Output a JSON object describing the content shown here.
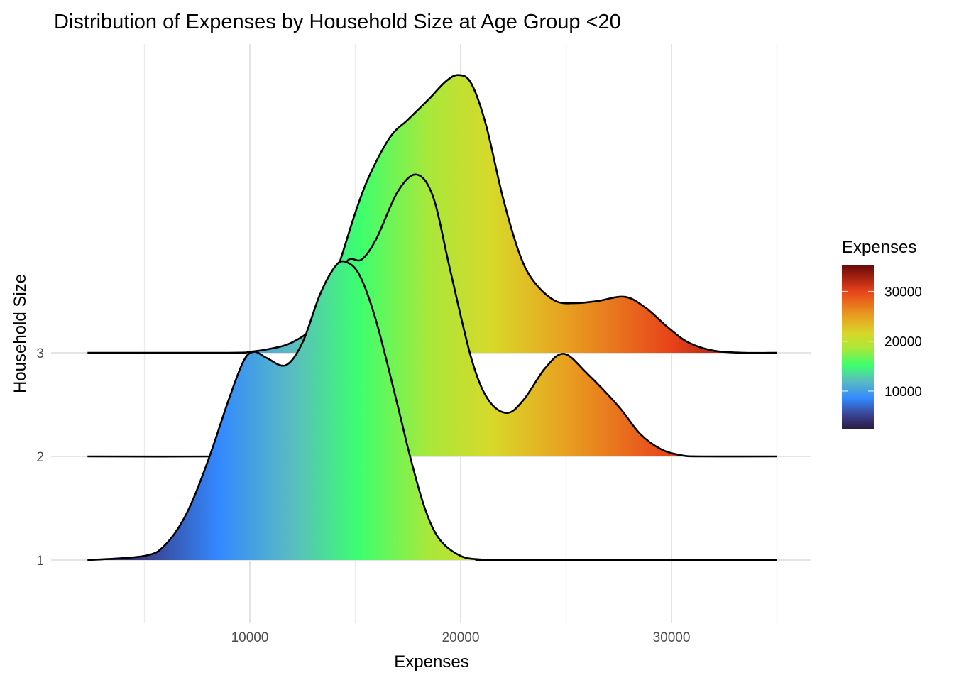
{
  "chart_data": {
    "type": "ridgeline",
    "title": "Distribution of Expenses by Household Size at Age Group <20",
    "xlabel": "Expenses",
    "ylabel": "Household Size",
    "xlim": [
      2300,
      35000
    ],
    "x_ticks": [
      10000,
      20000,
      30000
    ],
    "x_tick_labels": [
      "10000",
      "20000",
      "30000"
    ],
    "x_minor_grid": [
      5000,
      15000,
      25000,
      35000
    ],
    "grid": true,
    "legend": {
      "title": "Expenses",
      "position": "right",
      "range": [
        2300,
        35200
      ],
      "ticks": [
        10000,
        20000,
        30000
      ],
      "tick_labels": [
        "10000",
        "20000",
        "30000"
      ],
      "colors": [
        {
          "value": 2300,
          "color": "#2a1a40"
        },
        {
          "value": 5000,
          "color": "#3a3f8a"
        },
        {
          "value": 8500,
          "color": "#3388ff"
        },
        {
          "value": 12000,
          "color": "#5abcc0"
        },
        {
          "value": 15200,
          "color": "#3cff6e"
        },
        {
          "value": 18500,
          "color": "#a8e83a"
        },
        {
          "value": 21500,
          "color": "#d8d82a"
        },
        {
          "value": 25000,
          "color": "#e8a020"
        },
        {
          "value": 30000,
          "color": "#e8431a"
        },
        {
          "value": 33000,
          "color": "#a02010"
        },
        {
          "value": 35200,
          "color": "#6b0a0a"
        }
      ]
    },
    "series": [
      {
        "name": "1",
        "label": "1",
        "density_relative_height": [
          [
            2300,
            0
          ],
          [
            5000,
            0.04
          ],
          [
            6000,
            0.15
          ],
          [
            7000,
            0.45
          ],
          [
            8000,
            0.95
          ],
          [
            9000,
            1.55
          ],
          [
            9700,
            1.92
          ],
          [
            10200,
            2.01
          ],
          [
            10800,
            1.95
          ],
          [
            11700,
            1.88
          ],
          [
            12500,
            2.1
          ],
          [
            13300,
            2.55
          ],
          [
            14000,
            2.82
          ],
          [
            14500,
            2.88
          ],
          [
            15200,
            2.75
          ],
          [
            16000,
            2.3
          ],
          [
            17000,
            1.5
          ],
          [
            17600,
            1.0
          ],
          [
            18300,
            0.5
          ],
          [
            19000,
            0.2
          ],
          [
            20000,
            0.04
          ],
          [
            21000,
            0.005
          ],
          [
            22000,
            0
          ],
          [
            35000,
            0
          ]
        ]
      },
      {
        "name": "2",
        "label": "2",
        "density_relative_height": [
          [
            2300,
            0
          ],
          [
            9000,
            0
          ],
          [
            11000,
            0.02
          ],
          [
            12000,
            0.1
          ],
          [
            12800,
            0.4
          ],
          [
            13500,
            1.0
          ],
          [
            14000,
            1.5
          ],
          [
            14600,
            1.88
          ],
          [
            15300,
            1.9
          ],
          [
            16000,
            2.1
          ],
          [
            17000,
            2.55
          ],
          [
            17900,
            2.72
          ],
          [
            18700,
            2.5
          ],
          [
            19500,
            1.8
          ],
          [
            20500,
            0.95
          ],
          [
            21300,
            0.55
          ],
          [
            22200,
            0.42
          ],
          [
            23000,
            0.55
          ],
          [
            24000,
            0.85
          ],
          [
            24900,
            0.99
          ],
          [
            26000,
            0.8
          ],
          [
            27500,
            0.48
          ],
          [
            28500,
            0.22
          ],
          [
            29500,
            0.07
          ],
          [
            30500,
            0.01
          ],
          [
            31500,
            0
          ],
          [
            35000,
            0
          ]
        ]
      },
      {
        "name": "3",
        "label": "3",
        "density_relative_height": [
          [
            2300,
            0
          ],
          [
            9000,
            0
          ],
          [
            10000,
            0.01
          ],
          [
            11000,
            0.04
          ],
          [
            12000,
            0.1
          ],
          [
            13000,
            0.25
          ],
          [
            13700,
            0.55
          ],
          [
            14300,
            0.9
          ],
          [
            15000,
            1.35
          ],
          [
            15650,
            1.7
          ],
          [
            16650,
            2.08
          ],
          [
            17500,
            2.25
          ],
          [
            18500,
            2.45
          ],
          [
            19300,
            2.62
          ],
          [
            19900,
            2.68
          ],
          [
            20500,
            2.6
          ],
          [
            21200,
            2.2
          ],
          [
            22000,
            1.5
          ],
          [
            22800,
            0.95
          ],
          [
            23500,
            0.68
          ],
          [
            24500,
            0.5
          ],
          [
            25500,
            0.48
          ],
          [
            26500,
            0.5
          ],
          [
            27800,
            0.54
          ],
          [
            28800,
            0.43
          ],
          [
            29800,
            0.25
          ],
          [
            30800,
            0.1
          ],
          [
            32000,
            0.02
          ],
          [
            33500,
            0
          ],
          [
            35000,
            0
          ]
        ]
      }
    ]
  }
}
